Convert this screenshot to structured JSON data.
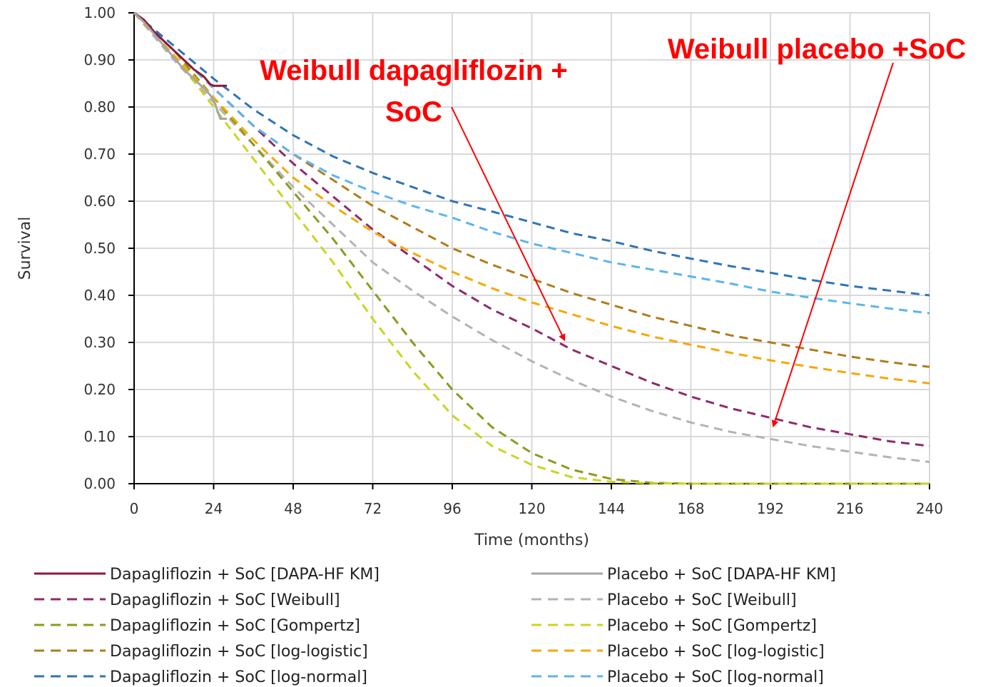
{
  "chart_data": {
    "type": "line",
    "xlabel": "Time (months)",
    "ylabel": "Survival",
    "xlim": [
      0,
      240
    ],
    "ylim": [
      0,
      1
    ],
    "x_ticks": [
      "0",
      "24",
      "48",
      "72",
      "96",
      "120",
      "144",
      "168",
      "192",
      "216",
      "240"
    ],
    "y_ticks": [
      "0.00",
      "0.10",
      "0.20",
      "0.30",
      "0.40",
      "0.50",
      "0.60",
      "0.70",
      "0.80",
      "0.90",
      "1.00"
    ],
    "grid": true,
    "legend_position": "bottom",
    "series": [
      {
        "name": "Dapagliflozin + SoC [DAPA-HF KM]",
        "color": "#8b1a3e",
        "style": "solid",
        "x": [
          0,
          3,
          6,
          9,
          12,
          15,
          18,
          21,
          23,
          24,
          26,
          27,
          28
        ],
        "y": [
          1.0,
          0.985,
          0.96,
          0.94,
          0.92,
          0.9,
          0.88,
          0.865,
          0.848,
          0.845,
          0.845,
          0.845,
          0.845
        ]
      },
      {
        "name": "Placebo + SoC [DAPA-HF KM]",
        "color": "#a6a6a6",
        "style": "solid",
        "x": [
          0,
          3,
          6,
          9,
          12,
          15,
          18,
          21,
          23,
          24,
          26,
          27,
          28
        ],
        "y": [
          1.0,
          0.98,
          0.955,
          0.93,
          0.905,
          0.88,
          0.86,
          0.84,
          0.825,
          0.815,
          0.775,
          0.775,
          0.775
        ]
      },
      {
        "name": "Dapagliflozin + SoC [Weibull]",
        "color": "#8e2a6c",
        "style": "dashed",
        "x": [
          0,
          12,
          24,
          36,
          48,
          60,
          72,
          84,
          96,
          108,
          120,
          132,
          144,
          156,
          168,
          180,
          192,
          204,
          216,
          228,
          240
        ],
        "y": [
          1.0,
          0.92,
          0.84,
          0.76,
          0.68,
          0.61,
          0.54,
          0.48,
          0.42,
          0.37,
          0.33,
          0.285,
          0.25,
          0.215,
          0.185,
          0.16,
          0.14,
          0.12,
          0.105,
          0.09,
          0.08
        ]
      },
      {
        "name": "Placebo + SoC [Weibull]",
        "color": "#b3b3b3",
        "style": "dashed",
        "x": [
          0,
          12,
          24,
          36,
          48,
          60,
          72,
          84,
          96,
          108,
          120,
          132,
          144,
          156,
          168,
          180,
          192,
          204,
          216,
          228,
          240
        ],
        "y": [
          1.0,
          0.9,
          0.81,
          0.72,
          0.63,
          0.55,
          0.47,
          0.41,
          0.355,
          0.305,
          0.26,
          0.22,
          0.185,
          0.155,
          0.13,
          0.11,
          0.095,
          0.08,
          0.068,
          0.056,
          0.046
        ]
      },
      {
        "name": "Dapagliflozin + SoC [Gompertz]",
        "color": "#8c9a1c",
        "style": "dashed",
        "x": [
          0,
          12,
          24,
          36,
          48,
          60,
          72,
          84,
          96,
          108,
          120,
          132,
          144,
          156,
          168,
          180,
          192,
          204,
          216,
          228,
          240
        ],
        "y": [
          1.0,
          0.92,
          0.82,
          0.72,
          0.62,
          0.52,
          0.41,
          0.3,
          0.2,
          0.12,
          0.065,
          0.03,
          0.01,
          0.002,
          0.0,
          0.0,
          0.0,
          0.0,
          0.0,
          0.0,
          0.0
        ]
      },
      {
        "name": "Placebo + SoC [Gompertz]",
        "color": "#c9d620",
        "style": "dashed",
        "x": [
          0,
          12,
          24,
          36,
          48,
          60,
          72,
          84,
          96,
          108,
          120,
          132,
          144,
          156,
          168,
          180,
          192,
          204,
          216,
          228,
          240
        ],
        "y": [
          1.0,
          0.91,
          0.8,
          0.69,
          0.58,
          0.47,
          0.35,
          0.24,
          0.145,
          0.08,
          0.04,
          0.014,
          0.004,
          0.001,
          0.0,
          0.0,
          0.0,
          0.0,
          0.0,
          0.0,
          0.0
        ]
      },
      {
        "name": "Dapagliflozin + SoC [log-logistic]",
        "color": "#b07c1a",
        "style": "dashed",
        "x": [
          0,
          12,
          24,
          36,
          48,
          60,
          72,
          84,
          96,
          108,
          120,
          132,
          144,
          156,
          168,
          180,
          192,
          204,
          216,
          228,
          240
        ],
        "y": [
          1.0,
          0.92,
          0.84,
          0.76,
          0.7,
          0.645,
          0.59,
          0.545,
          0.5,
          0.465,
          0.435,
          0.405,
          0.38,
          0.355,
          0.335,
          0.315,
          0.3,
          0.285,
          0.27,
          0.258,
          0.248
        ]
      },
      {
        "name": "Placebo + SoC [log-logistic]",
        "color": "#f5a800",
        "style": "dashed",
        "x": [
          0,
          12,
          24,
          36,
          48,
          60,
          72,
          84,
          96,
          108,
          120,
          132,
          144,
          156,
          168,
          180,
          192,
          204,
          216,
          228,
          240
        ],
        "y": [
          1.0,
          0.91,
          0.82,
          0.73,
          0.65,
          0.59,
          0.535,
          0.49,
          0.45,
          0.415,
          0.385,
          0.36,
          0.335,
          0.313,
          0.295,
          0.278,
          0.262,
          0.248,
          0.235,
          0.223,
          0.213
        ]
      },
      {
        "name": "Dapagliflozin + SoC [log-normal]",
        "color": "#2e75b6",
        "style": "dashed",
        "x": [
          0,
          12,
          24,
          36,
          48,
          60,
          72,
          84,
          96,
          108,
          120,
          132,
          144,
          156,
          168,
          180,
          192,
          204,
          216,
          228,
          240
        ],
        "y": [
          1.0,
          0.93,
          0.86,
          0.795,
          0.74,
          0.695,
          0.66,
          0.63,
          0.6,
          0.578,
          0.555,
          0.532,
          0.515,
          0.495,
          0.478,
          0.462,
          0.448,
          0.433,
          0.42,
          0.41,
          0.4
        ]
      },
      {
        "name": "Placebo + SoC [log-normal]",
        "color": "#5bb5ee",
        "style": "dashed",
        "x": [
          0,
          12,
          24,
          36,
          48,
          60,
          72,
          84,
          96,
          108,
          120,
          132,
          144,
          156,
          168,
          180,
          192,
          204,
          216,
          228,
          240
        ],
        "y": [
          1.0,
          0.92,
          0.84,
          0.76,
          0.7,
          0.655,
          0.62,
          0.59,
          0.565,
          0.535,
          0.51,
          0.49,
          0.47,
          0.455,
          0.44,
          0.425,
          0.408,
          0.395,
          0.383,
          0.372,
          0.362
        ]
      }
    ],
    "annotations": [
      {
        "text_lines": [
          "Weibull dapagliflozin +",
          "SoC"
        ],
        "color": "#ff0000",
        "points_to": {
          "x": 132,
          "y": 0.29
        }
      },
      {
        "text_lines": [
          "Weibull placebo +SoC"
        ],
        "color": "#ff0000",
        "points_to": {
          "x": 192,
          "y": 0.11
        }
      }
    ]
  }
}
